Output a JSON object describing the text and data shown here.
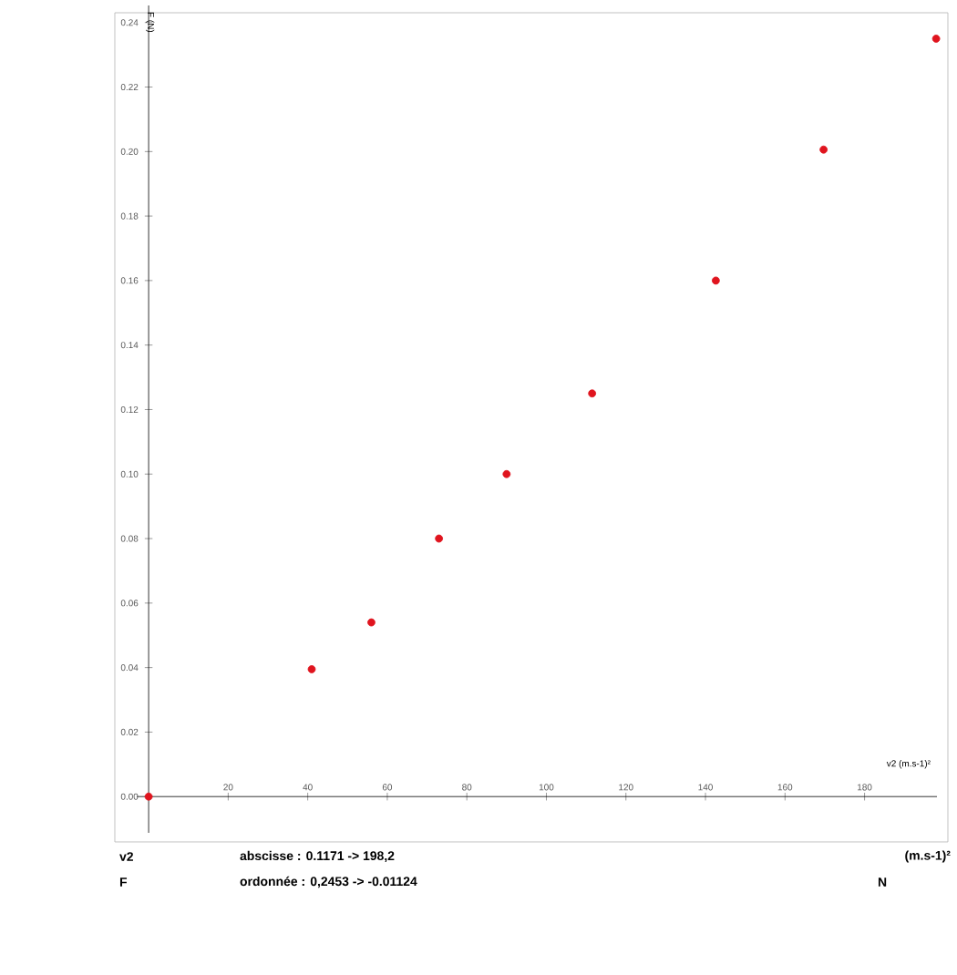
{
  "chart_data": {
    "type": "scatter",
    "xlabel": "v2 (m.s-1)²",
    "ylabel": "F (N)",
    "x": [
      0,
      41,
      56,
      73,
      90,
      111.5,
      142.6,
      169.7,
      198
    ],
    "series": [
      {
        "color": "#e0141e",
        "values": [
          0,
          0.0395,
          0.054,
          0.08,
          0.1,
          0.125,
          0.16,
          0.2006,
          0.235
        ]
      }
    ],
    "marker": "circle",
    "xlim": [
      -3,
      198.2
    ],
    "ylim": [
      -0.01124,
      0.2453
    ],
    "xticks": [
      20,
      40,
      60,
      80,
      100,
      120,
      140,
      160,
      180
    ],
    "yticks": [
      {
        "value": 0,
        "label": "0.00"
      },
      {
        "value": 0.02,
        "label": "0.02"
      },
      {
        "value": 0.04,
        "label": "0.04"
      },
      {
        "value": 0.06,
        "label": "0.06"
      },
      {
        "value": 0.08,
        "label": "0.08"
      },
      {
        "value": 0.1,
        "label": "0.10"
      },
      {
        "value": 0.12,
        "label": "0.12"
      },
      {
        "value": 0.14,
        "label": "0.14"
      },
      {
        "value": 0.16,
        "label": "0.16"
      },
      {
        "value": 0.18,
        "label": "0.18"
      },
      {
        "value": 0.2,
        "label": "0.20"
      },
      {
        "value": 0.22,
        "label": "0.22"
      },
      {
        "value": 0.24,
        "label": "0.24"
      }
    ],
    "annotations": [
      "v2",
      "abscisse : 0.1171 -> 198,2",
      "(m.s-1)²",
      "F",
      "ordonnée : 0,2453 -> -0.01124",
      "N"
    ]
  }
}
